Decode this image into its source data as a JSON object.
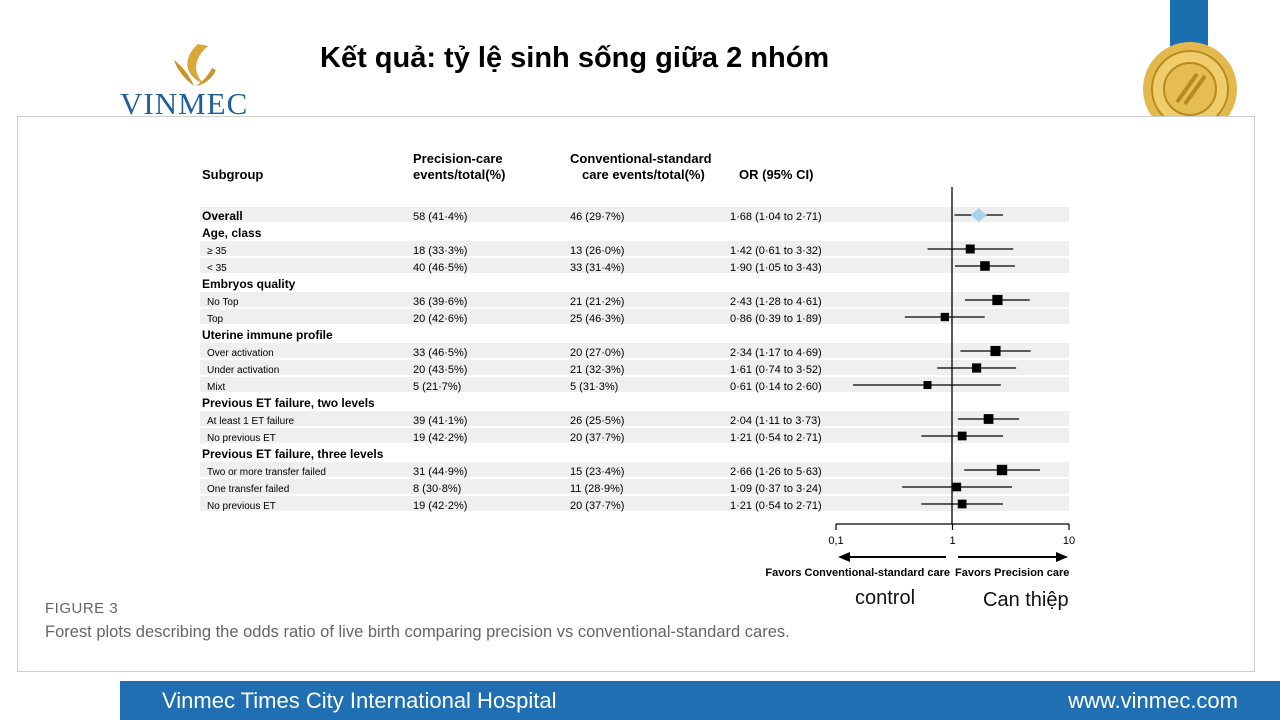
{
  "header": {
    "title": "Kết quả: tỷ lệ sinh sống giữa 2 nhóm",
    "logo_text": "VINMEC"
  },
  "table": {
    "columns": {
      "subgroup": "Subgroup",
      "precision_l1": "Precision-care",
      "precision_l2": "events/total(%)",
      "conventional_l1": "Conventional-standard",
      "conventional_l2": "care events/total(%)",
      "or": "OR (95% CI)"
    },
    "rows": [
      {
        "label": "Overall",
        "kind": "overall",
        "precision": "58 (41·4%)",
        "conventional": "46 (29·7%)",
        "or_text": "1·68 (1·04 to 2·71)"
      },
      {
        "label": "Age, class",
        "kind": "header"
      },
      {
        "label": "≥ 35",
        "kind": "item",
        "precision": "18 (33·3%)",
        "conventional": "13 (26·0%)",
        "or_text": "1·42 (0·61 to 3·32)"
      },
      {
        "label": "< 35",
        "kind": "item",
        "precision": "40 (46·5%)",
        "conventional": "33 (31·4%)",
        "or_text": "1·90 (1·05 to 3·43)"
      },
      {
        "label": "Embryos quality",
        "kind": "header"
      },
      {
        "label": "No Top",
        "kind": "item",
        "precision": "36 (39·6%)",
        "conventional": "21 (21·2%)",
        "or_text": "2·43 (1·28 to 4·61)"
      },
      {
        "label": "Top",
        "kind": "item",
        "precision": "20 (42·6%)",
        "conventional": "25 (46·3%)",
        "or_text": "0·86 (0·39 to 1·89)"
      },
      {
        "label": "Uterine immune profile",
        "kind": "header"
      },
      {
        "label": "Over activation",
        "kind": "item",
        "precision": "33 (46·5%)",
        "conventional": "20 (27·0%)",
        "or_text": "2·34 (1·17 to 4·69)"
      },
      {
        "label": "Under activation",
        "kind": "item",
        "precision": "20 (43·5%)",
        "conventional": "21 (32·3%)",
        "or_text": "1·61 (0·74 to 3·52)"
      },
      {
        "label": "Mixt",
        "kind": "item",
        "precision": "5 (21·7%)",
        "conventional": "5 (31·3%)",
        "or_text": "0·61 (0·14 to 2·60)"
      },
      {
        "label": "Previous ET failure, two levels",
        "kind": "header"
      },
      {
        "label": "At least 1 ET failure",
        "kind": "item",
        "precision": "39 (41·1%)",
        "conventional": "26 (25·5%)",
        "or_text": "2·04 (1·11 to 3·73)"
      },
      {
        "label": "No previous ET",
        "kind": "item",
        "precision": "19 (42·2%)",
        "conventional": "20 (37·7%)",
        "or_text": "1·21 (0·54 to 2·71)"
      },
      {
        "label": "Previous ET failure, three levels",
        "kind": "header"
      },
      {
        "label": "Two or more transfer failed",
        "kind": "item",
        "precision": "31 (44·9%)",
        "conventional": "15 (23·4%)",
        "or_text": "2·66 (1·26 to 5·63)"
      },
      {
        "label": "One transfer failed",
        "kind": "item",
        "precision": "8 (30·8%)",
        "conventional": "11 (28·9%)",
        "or_text": "1·09 (0·37 to 3·24)"
      },
      {
        "label": "No previous ET",
        "kind": "item",
        "precision": "19 (42·2%)",
        "conventional": "20 (37·7%)",
        "or_text": "1·21 (0·54 to 2·71)"
      }
    ]
  },
  "chart_data": {
    "type": "forest",
    "scale": "log",
    "xlim": [
      0.1,
      10
    ],
    "xticks": [
      0.1,
      1,
      10
    ],
    "xtick_labels": [
      "0,1",
      "1",
      "10"
    ],
    "reference_line": 1,
    "favors_left": "Favors Conventional-standard care",
    "favors_right": "Favors Precision care",
    "estimates": [
      {
        "row": 0,
        "or": 1.68,
        "lo": 1.04,
        "hi": 2.71
      },
      {
        "row": 2,
        "or": 1.42,
        "lo": 0.61,
        "hi": 3.32
      },
      {
        "row": 3,
        "or": 1.9,
        "lo": 1.05,
        "hi": 3.43
      },
      {
        "row": 5,
        "or": 2.43,
        "lo": 1.28,
        "hi": 4.61
      },
      {
        "row": 6,
        "or": 0.86,
        "lo": 0.39,
        "hi": 1.89
      },
      {
        "row": 8,
        "or": 2.34,
        "lo": 1.17,
        "hi": 4.69
      },
      {
        "row": 9,
        "or": 1.61,
        "lo": 0.74,
        "hi": 3.52
      },
      {
        "row": 10,
        "or": 0.61,
        "lo": 0.14,
        "hi": 2.6
      },
      {
        "row": 12,
        "or": 2.04,
        "lo": 1.11,
        "hi": 3.73
      },
      {
        "row": 13,
        "or": 1.21,
        "lo": 0.54,
        "hi": 2.71
      },
      {
        "row": 15,
        "or": 2.66,
        "lo": 1.26,
        "hi": 5.63
      },
      {
        "row": 16,
        "or": 1.09,
        "lo": 0.37,
        "hi": 3.24
      },
      {
        "row": 17,
        "or": 1.21,
        "lo": 0.54,
        "hi": 2.71
      }
    ]
  },
  "figure": {
    "label": "FIGURE 3",
    "caption": "Forest plots describing the odds ratio of live birth comparing precision vs conventional-standard cares."
  },
  "annotations": {
    "control": "control",
    "intervention": "Can thiệp"
  },
  "footer": {
    "hospital": "Vinmec Times City International Hospital",
    "website": "www.vinmec.com"
  },
  "colors": {
    "brand_blue": "#1f6fb2",
    "gold": "#d8a938",
    "overall_diamond": "#a9d3ea"
  }
}
